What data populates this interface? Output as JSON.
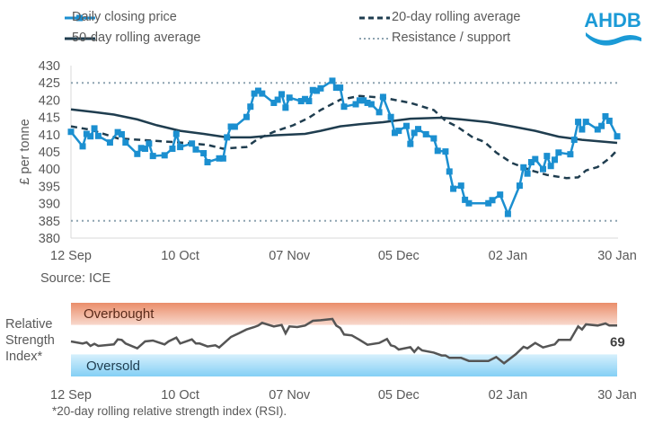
{
  "logo_text": "AHDB",
  "colors": {
    "price": "#1b8fd0",
    "averages": "#1f3d4f",
    "levels": "#8da3b0",
    "rsi": "#555555",
    "overbought": "#ee9a78",
    "oversold": "#8fd3f5"
  },
  "legend": [
    {
      "label": "Daily closing price",
      "style": "line-square-markers"
    },
    {
      "label": "20-day rolling average",
      "style": "dashed"
    },
    {
      "label": "50-day rolling average",
      "style": "solid"
    },
    {
      "label": "Resistance / support",
      "style": "dotted"
    }
  ],
  "source": "Source: ICE",
  "footnote": "*20-day rolling relative strength index (RSI).",
  "chart_data": [
    {
      "type": "line",
      "ylabel": "£ per tonne",
      "ylim": [
        380,
        430
      ],
      "yticks": [
        "380",
        "385",
        "390",
        "395",
        "400",
        "405",
        "410",
        "415",
        "420",
        "425",
        "430"
      ],
      "xticks": [
        "12 Sep",
        "10 Oct",
        "07 Nov",
        "05 Dec",
        "02 Jan",
        "30 Jan"
      ],
      "xlim": [
        "12 Sep",
        "30 Jan"
      ],
      "grid": false,
      "legend_position": "top",
      "series": [
        {
          "name": "Daily closing price",
          "points": [
            [
              "12 Sep",
              410.8
            ],
            [
              "15 Sep",
              406.6
            ],
            [
              "16 Sep",
              410.2
            ],
            [
              "17 Sep",
              409.5
            ],
            [
              "18 Sep",
              411.8
            ],
            [
              "19 Sep",
              409.6
            ],
            [
              "22 Sep",
              407.7
            ],
            [
              "24 Sep",
              410.7
            ],
            [
              "25 Sep",
              410.1
            ],
            [
              "26 Sep",
              407.7
            ],
            [
              "29 Sep",
              404.4
            ],
            [
              "30 Sep",
              406.1
            ],
            [
              "01 Oct",
              405.9
            ],
            [
              "02 Oct",
              407.4
            ],
            [
              "03 Oct",
              403.8
            ],
            [
              "06 Oct",
              404.0
            ],
            [
              "08 Oct",
              405.9
            ],
            [
              "09 Oct",
              410.2
            ],
            [
              "10 Oct",
              406.4
            ],
            [
              "13 Oct",
              407.4
            ],
            [
              "14 Oct",
              405.7
            ],
            [
              "16 Oct",
              404.6
            ],
            [
              "17 Oct",
              402.0
            ],
            [
              "20 Oct",
              403.1
            ],
            [
              "21 Oct",
              403.1
            ],
            [
              "22 Oct",
              409.2
            ],
            [
              "23 Oct",
              412.3
            ],
            [
              "24 Oct",
              412.3
            ],
            [
              "27 Oct",
              415.1
            ],
            [
              "28 Oct",
              418.1
            ],
            [
              "29 Oct",
              421.9
            ],
            [
              "30 Oct",
              422.7
            ],
            [
              "31 Oct",
              421.9
            ],
            [
              "03 Nov",
              419.2
            ],
            [
              "04 Nov",
              420.1
            ],
            [
              "05 Nov",
              421.7
            ],
            [
              "06 Nov",
              417.8
            ],
            [
              "07 Nov",
              420.7
            ],
            [
              "10 Nov",
              419.7
            ],
            [
              "11 Nov",
              420.3
            ],
            [
              "12 Nov",
              419.7
            ],
            [
              "13 Nov",
              422.9
            ],
            [
              "14 Nov",
              422.7
            ],
            [
              "15 Nov",
              423.4
            ],
            [
              "18 Nov",
              425.6
            ],
            [
              "19 Nov",
              423.6
            ],
            [
              "20 Nov",
              423.6
            ],
            [
              "21 Nov",
              418.1
            ],
            [
              "24 Nov",
              418.8
            ],
            [
              "25 Nov",
              419.9
            ],
            [
              "26 Nov",
              419.9
            ],
            [
              "27 Nov",
              419.2
            ],
            [
              "28 Nov",
              418.8
            ],
            [
              "30 Nov",
              416.5
            ],
            [
              "01 Dec",
              420.9
            ],
            [
              "03 Dec",
              415.1
            ],
            [
              "04 Dec",
              410.5
            ],
            [
              "05 Dec",
              411.1
            ],
            [
              "07 Dec",
              412.5
            ],
            [
              "08 Dec",
              407.3
            ],
            [
              "09 Dec",
              410.5
            ],
            [
              "10 Dec",
              411.6
            ],
            [
              "12 Dec",
              410.1
            ],
            [
              "14 Dec",
              408.9
            ],
            [
              "15 Dec",
              405.3
            ],
            [
              "17 Dec",
              405.1
            ],
            [
              "18 Dec",
              399.3
            ],
            [
              "19 Dec",
              394.3
            ],
            [
              "21 Dec",
              395.2
            ],
            [
              "22 Dec",
              391.1
            ],
            [
              "23 Dec",
              390.1
            ],
            [
              "28 Dec",
              390.1
            ],
            [
              "29 Dec",
              391.0
            ],
            [
              "31 Dec",
              392.6
            ],
            [
              "02 Jan",
              387.0
            ],
            [
              "05 Jan",
              395.2
            ],
            [
              "06 Jan",
              400.5
            ],
            [
              "07 Jan",
              398.7
            ],
            [
              "08 Jan",
              402.0
            ],
            [
              "09 Jan",
              402.9
            ],
            [
              "11 Jan",
              400.0
            ],
            [
              "12 Jan",
              403.8
            ],
            [
              "13 Jan",
              400.9
            ],
            [
              "14 Jan",
              402.7
            ],
            [
              "15 Jan",
              404.8
            ],
            [
              "18 Jan",
              404.3
            ],
            [
              "19 Jan",
              408.5
            ],
            [
              "20 Jan",
              413.7
            ],
            [
              "21 Jan",
              411.5
            ],
            [
              "22 Jan",
              413.7
            ],
            [
              "25 Jan",
              411.5
            ],
            [
              "26 Jan",
              412.5
            ],
            [
              "27 Jan",
              415.3
            ],
            [
              "28 Jan",
              414.0
            ],
            [
              "30 Jan",
              409.5
            ]
          ]
        },
        {
          "name": "20-day rolling average",
          "points": [
            [
              "12 Sep",
              412.4
            ],
            [
              "17 Sep",
              411.4
            ],
            [
              "24 Sep",
              408.9
            ],
            [
              "02 Oct",
              408.3
            ],
            [
              "10 Oct",
              407.7
            ],
            [
              "17 Oct",
              407.0
            ],
            [
              "21 Oct",
              405.9
            ],
            [
              "27 Oct",
              406.4
            ],
            [
              "30 Oct",
              408.8
            ],
            [
              "03 Nov",
              410.8
            ],
            [
              "08 Nov",
              412.7
            ],
            [
              "12 Nov",
              414.9
            ],
            [
              "15 Nov",
              417.1
            ],
            [
              "20 Nov",
              420.1
            ],
            [
              "25 Nov",
              421.2
            ],
            [
              "01 Dec",
              420.7
            ],
            [
              "08 Dec",
              419.2
            ],
            [
              "14 Dec",
              417.1
            ],
            [
              "17 Dec",
              414.0
            ],
            [
              "20 Dec",
              412.3
            ],
            [
              "24 Dec",
              409.2
            ],
            [
              "27 Dec",
              407.9
            ],
            [
              "30 Dec",
              404.8
            ],
            [
              "03 Jan",
              401.8
            ],
            [
              "08 Jan",
              399.6
            ],
            [
              "12 Jan",
              398.3
            ],
            [
              "17 Jan",
              397.4
            ],
            [
              "20 Jan",
              397.6
            ],
            [
              "22 Jan",
              399.6
            ],
            [
              "25 Jan",
              400.6
            ],
            [
              "28 Jan",
              403.1
            ],
            [
              "30 Jan",
              405.5
            ]
          ]
        },
        {
          "name": "50-day rolling average",
          "points": [
            [
              "12 Sep",
              417.3
            ],
            [
              "18 Sep",
              416.5
            ],
            [
              "23 Sep",
              415.8
            ],
            [
              "29 Sep",
              414.4
            ],
            [
              "04 Oct",
              412.7
            ],
            [
              "10 Oct",
              411.1
            ],
            [
              "16 Oct",
              410.2
            ],
            [
              "22 Oct",
              409.2
            ],
            [
              "28 Oct",
              409.2
            ],
            [
              "03 Nov",
              409.8
            ],
            [
              "11 Nov",
              410.2
            ],
            [
              "15 Nov",
              411.1
            ],
            [
              "20 Nov",
              412.4
            ],
            [
              "25 Nov",
              413.0
            ],
            [
              "01 Dec",
              413.6
            ],
            [
              "08 Dec",
              414.6
            ],
            [
              "16 Dec",
              414.9
            ],
            [
              "21 Dec",
              414.4
            ],
            [
              "28 Dec",
              413.6
            ],
            [
              "03 Jan",
              412.4
            ],
            [
              "09 Jan",
              411.1
            ],
            [
              "15 Jan",
              409.4
            ],
            [
              "21 Jan",
              408.5
            ],
            [
              "30 Jan",
              407.6
            ]
          ]
        },
        {
          "name": "Resistance / support",
          "levels": [
            425,
            385
          ]
        }
      ]
    },
    {
      "type": "line",
      "ylabel": "Relative Strength Index*",
      "ylim": [
        0,
        100
      ],
      "xticks": [
        "12 Sep",
        "10 Oct",
        "07 Nov",
        "05 Dec",
        "02 Jan",
        "30 Jan"
      ],
      "xlim": [
        "12 Sep",
        "30 Jan"
      ],
      "bands": [
        {
          "label": "Overbought",
          "range": [
            70,
            100
          ]
        },
        {
          "label": "Oversold",
          "range": [
            0,
            30
          ]
        }
      ],
      "last_value_label": "69",
      "series": [
        {
          "points": [
            [
              "12 Sep",
              47.6
            ],
            [
              "15 Sep",
              44.7
            ],
            [
              "16 Sep",
              46.3
            ],
            [
              "17 Sep",
              41.5
            ],
            [
              "18 Sep",
              44.3
            ],
            [
              "19 Sep",
              41.5
            ],
            [
              "23 Sep",
              43.5
            ],
            [
              "24 Sep",
              50.4
            ],
            [
              "25 Sep",
              49.6
            ],
            [
              "26 Sep",
              44.7
            ],
            [
              "29 Sep",
              38.2
            ],
            [
              "01 Oct",
              47.6
            ],
            [
              "03 Oct",
              48.8
            ],
            [
              "06 Oct",
              43.5
            ],
            [
              "07 Oct",
              47.6
            ],
            [
              "09 Oct",
              52.8
            ],
            [
              "10 Oct",
              44.7
            ],
            [
              "13 Oct",
              50.4
            ],
            [
              "14 Oct",
              44.7
            ],
            [
              "15 Oct",
              44.7
            ],
            [
              "17 Oct",
              40.7
            ],
            [
              "19 Oct",
              42.3
            ],
            [
              "20 Oct",
              39.4
            ],
            [
              "23 Oct",
              53.7
            ],
            [
              "25 Oct",
              58.5
            ],
            [
              "27 Oct",
              63.8
            ],
            [
              "29 Oct",
              67.1
            ],
            [
              "30 Oct",
              69.1
            ],
            [
              "31 Oct",
              72.8
            ],
            [
              "03 Nov",
              67.9
            ],
            [
              "05 Nov",
              69.9
            ],
            [
              "06 Nov",
              58.5
            ],
            [
              "07 Nov",
              67.9
            ],
            [
              "09 Nov",
              67.1
            ],
            [
              "11 Nov",
              69.1
            ],
            [
              "13 Nov",
              75.6
            ],
            [
              "15 Nov",
              76.4
            ],
            [
              "18 Nov",
              78.0
            ],
            [
              "19 Nov",
              69.1
            ],
            [
              "20 Nov",
              65.9
            ],
            [
              "21 Nov",
              56.9
            ],
            [
              "23 Nov",
              55.7
            ],
            [
              "25 Nov",
              49.6
            ],
            [
              "27 Nov",
              43.1
            ],
            [
              "30 Nov",
              45.5
            ],
            [
              "02 Dec",
              50.8
            ],
            [
              "03 Dec",
              42.3
            ],
            [
              "04 Dec",
              40.7
            ],
            [
              "05 Dec",
              36.6
            ],
            [
              "08 Dec",
              39.8
            ],
            [
              "09 Dec",
              33.3
            ],
            [
              "10 Dec",
              39.4
            ],
            [
              "11 Dec",
              35.4
            ],
            [
              "14 Dec",
              32.5
            ],
            [
              "16 Dec",
              28.5
            ],
            [
              "17 Dec",
              28.5
            ],
            [
              "18 Dec",
              25.2
            ],
            [
              "21 Dec",
              25.2
            ],
            [
              "23 Dec",
              21.1
            ],
            [
              "28 Dec",
              21.1
            ],
            [
              "30 Dec",
              26.4
            ],
            [
              "01 Jan",
              17.9
            ],
            [
              "04 Jan",
              30.1
            ],
            [
              "06 Jan",
              40.2
            ],
            [
              "07 Jan",
              38.2
            ],
            [
              "09 Jan",
              45.5
            ],
            [
              "11 Jan",
              39.4
            ],
            [
              "13 Jan",
              42.3
            ],
            [
              "14 Jan",
              43.5
            ],
            [
              "15 Jan",
              49.6
            ],
            [
              "18 Jan",
              49.6
            ],
            [
              "20 Jan",
              67.9
            ],
            [
              "21 Jan",
              63.8
            ],
            [
              "22 Jan",
              70.7
            ],
            [
              "25 Jan",
              69.1
            ],
            [
              "27 Jan",
              72.0
            ],
            [
              "28 Jan",
              69.1
            ],
            [
              "30 Jan",
              69.1
            ]
          ]
        }
      ]
    }
  ]
}
